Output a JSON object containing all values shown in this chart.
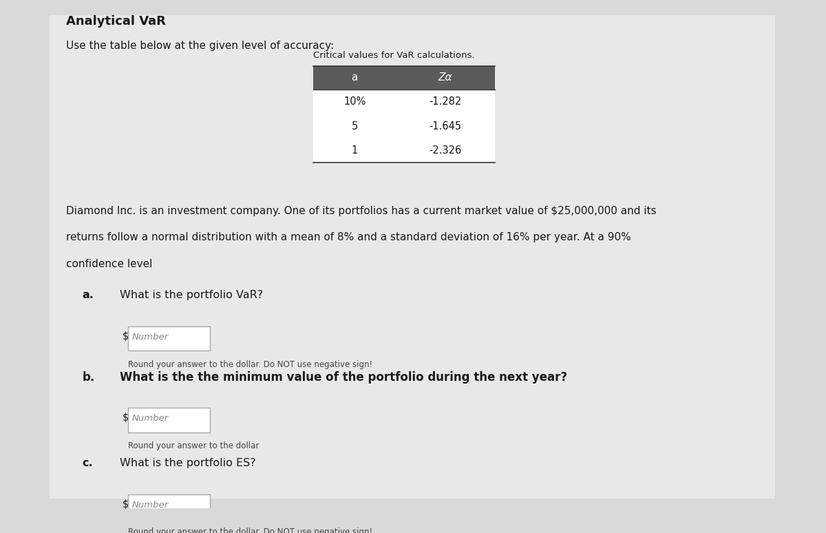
{
  "title": "Analytical VaR",
  "subtitle": "Use the table below at the given level of accuracy:",
  "table_title": "Critical values for VaR calculations.",
  "table_headers": [
    "a",
    "Zα"
  ],
  "table_rows": [
    [
      "10%",
      "-1.282"
    ],
    [
      "5",
      "-1.645"
    ],
    [
      "1",
      "-2.326"
    ]
  ],
  "paragraph": "Diamond Inc. is an investment company. One of its portfolios has a current market value of $25,000,000 and its\nreturns follow a normal distribution with a mean of 8% and a standard deviation of 16% per year. At a 90%\nconfidence level",
  "questions": [
    {
      "label": "a.",
      "text": "What is the portfolio VaR?",
      "hint": "Round your answer to the dollar. Do NOT use negative sign!",
      "bold": false
    },
    {
      "label": "b.",
      "text": "What is the the minimum value of the portfolio during the next year?",
      "hint": "Round your answer to the dollar",
      "bold": true
    },
    {
      "label": "c.",
      "text": "What is the portfolio ES?",
      "hint": "Round your answer to the dollar. Do NOT use negative sign!",
      "bold": false
    }
  ],
  "bg_color": "#d9d9d9",
  "content_bg": "#e8e8e8",
  "table_header_bg": "#5b5b5b",
  "table_header_color": "#ffffff",
  "table_row_bg": "#ffffff",
  "input_box_color": "#ffffff",
  "input_border_color": "#aaaaaa",
  "text_color": "#1a1a1a",
  "hint_color": "#444444"
}
